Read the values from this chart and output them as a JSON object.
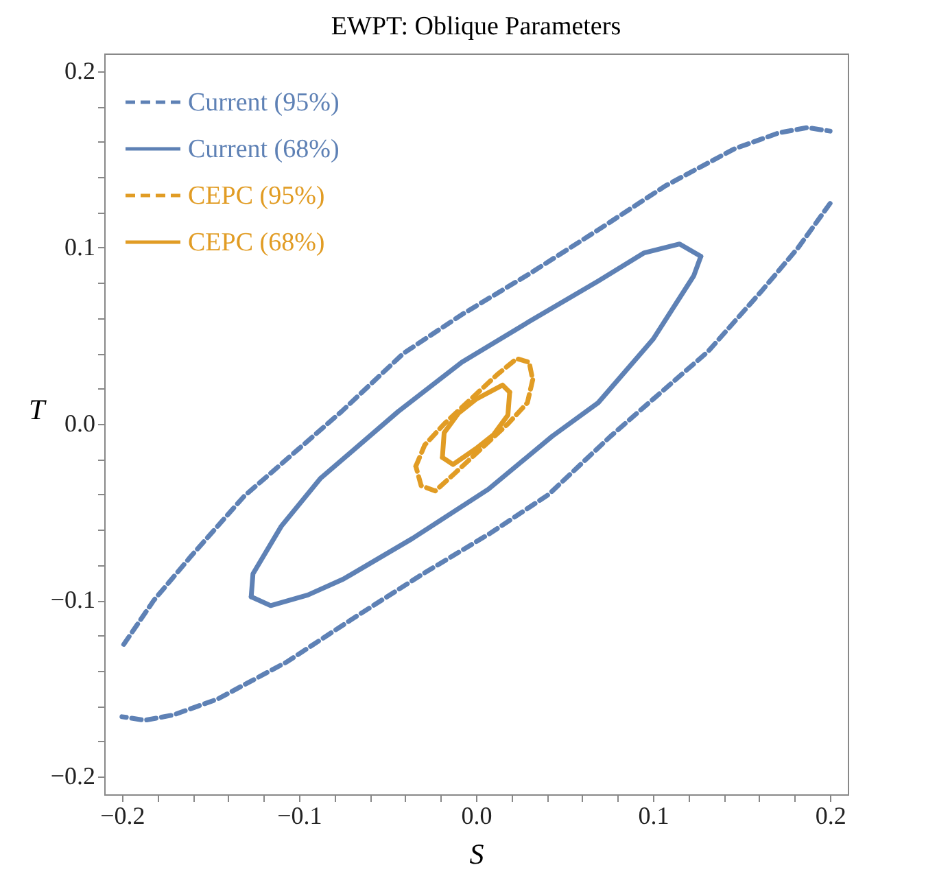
{
  "chart_data": {
    "type": "line",
    "title": "EWPT: Oblique Parameters",
    "xlabel": "S",
    "ylabel": "T",
    "xlim": [
      -0.21,
      0.21
    ],
    "ylim": [
      -0.21,
      0.21
    ],
    "xticks": [
      {
        "value": -0.2,
        "label": "−0.2"
      },
      {
        "value": -0.18,
        "label": null
      },
      {
        "value": -0.16,
        "label": null
      },
      {
        "value": -0.14,
        "label": null
      },
      {
        "value": -0.12,
        "label": null
      },
      {
        "value": -0.1,
        "label": "−0.1"
      },
      {
        "value": -0.08,
        "label": null
      },
      {
        "value": -0.06,
        "label": null
      },
      {
        "value": -0.04,
        "label": null
      },
      {
        "value": -0.02,
        "label": null
      },
      {
        "value": 0,
        "label": "0.0"
      },
      {
        "value": 0.02,
        "label": null
      },
      {
        "value": 0.04,
        "label": null
      },
      {
        "value": 0.06,
        "label": null
      },
      {
        "value": 0.08,
        "label": null
      },
      {
        "value": 0.1,
        "label": "0.1"
      },
      {
        "value": 0.12,
        "label": null
      },
      {
        "value": 0.14,
        "label": null
      },
      {
        "value": 0.16,
        "label": null
      },
      {
        "value": 0.18,
        "label": null
      },
      {
        "value": 0.2,
        "label": "0.2"
      }
    ],
    "yticks": [
      {
        "value": -0.2,
        "label": "−0.2"
      },
      {
        "value": -0.18,
        "label": null
      },
      {
        "value": -0.16,
        "label": null
      },
      {
        "value": -0.14,
        "label": null
      },
      {
        "value": -0.12,
        "label": null
      },
      {
        "value": -0.1,
        "label": "−0.1"
      },
      {
        "value": -0.08,
        "label": null
      },
      {
        "value": -0.06,
        "label": null
      },
      {
        "value": -0.04,
        "label": null
      },
      {
        "value": -0.02,
        "label": null
      },
      {
        "value": 0,
        "label": "0.0"
      },
      {
        "value": 0.02,
        "label": null
      },
      {
        "value": 0.04,
        "label": null
      },
      {
        "value": 0.06,
        "label": null
      },
      {
        "value": 0.08,
        "label": null
      },
      {
        "value": 0.1,
        "label": "0.1"
      },
      {
        "value": 0.12,
        "label": null
      },
      {
        "value": 0.14,
        "label": null
      },
      {
        "value": 0.16,
        "label": null
      },
      {
        "value": 0.18,
        "label": null
      },
      {
        "value": 0.2,
        "label": "0.2"
      }
    ],
    "grid": false,
    "legend": "top left",
    "series": [
      {
        "name": "Current (95%)",
        "color": "#5e81b5",
        "line_style": "dashed",
        "x": [
          -0.199,
          -0.182,
          -0.161,
          -0.131,
          -0.1,
          -0.076,
          -0.041,
          -0.008,
          0.03,
          0.069,
          0.107,
          0.146,
          0.171,
          0.187,
          0.2,
          null,
          0.2,
          0.182,
          0.161,
          0.131,
          0.1,
          0.076,
          0.041,
          0.008,
          -0.03,
          -0.069,
          -0.107,
          -0.146,
          -0.171,
          -0.187,
          -0.2
        ],
        "values": [
          -0.125,
          -0.1,
          -0.075,
          -0.041,
          -0.014,
          0.007,
          0.04,
          0.062,
          0.085,
          0.11,
          0.135,
          0.156,
          0.165,
          0.168,
          0.166,
          null,
          0.125,
          0.1,
          0.075,
          0.041,
          0.014,
          -0.007,
          -0.04,
          -0.062,
          -0.085,
          -0.11,
          -0.135,
          -0.156,
          -0.165,
          -0.168,
          -0.166
        ]
      },
      {
        "name": "Current (68%)",
        "color": "#5e81b5",
        "line_style": "solid",
        "x": [
          -0.127,
          -0.126,
          -0.11,
          -0.088,
          -0.044,
          -0.008,
          0.03,
          0.069,
          0.095,
          0.115,
          0.127,
          null,
          0.127,
          0.123,
          0.1,
          0.069,
          0.043,
          0.007,
          -0.036,
          -0.075,
          -0.095,
          -0.116,
          -0.127
        ],
        "values": [
          -0.098,
          -0.085,
          -0.058,
          -0.031,
          0.007,
          0.035,
          0.058,
          0.081,
          0.097,
          0.102,
          0.095,
          null,
          0.095,
          0.084,
          0.048,
          0.012,
          -0.007,
          -0.037,
          -0.065,
          -0.088,
          -0.097,
          -0.103,
          -0.098
        ]
      },
      {
        "name": "CEPC (95%)",
        "color": "#e19c24",
        "line_style": "dashed",
        "x": [
          -0.034,
          -0.029,
          -0.018,
          -0.003,
          0.012,
          0.023,
          0.03,
          0.032,
          null,
          0.032,
          0.029,
          0.018,
          0.003,
          -0.012,
          -0.023,
          -0.031,
          -0.034
        ],
        "values": [
          -0.024,
          -0.012,
          0.0,
          0.014,
          0.028,
          0.037,
          0.035,
          0.025,
          null,
          0.025,
          0.012,
          0.0,
          -0.014,
          -0.028,
          -0.038,
          -0.035,
          -0.024
        ]
      },
      {
        "name": "CEPC (68%)",
        "color": "#e19c24",
        "line_style": "solid",
        "x": [
          -0.019,
          -0.018,
          -0.01,
          0.0,
          0.015,
          0.019,
          null,
          0.019,
          0.018,
          0.01,
          0.0,
          -0.013,
          -0.019
        ],
        "values": [
          -0.019,
          -0.005,
          0.006,
          0.014,
          0.022,
          0.018,
          null,
          0.018,
          0.005,
          -0.006,
          -0.014,
          -0.023,
          -0.019
        ]
      }
    ]
  }
}
